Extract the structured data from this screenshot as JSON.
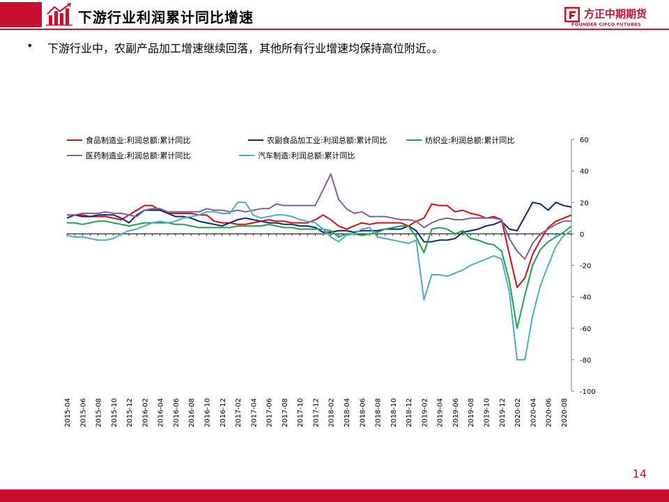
{
  "page": {
    "title": "下游行业利润累计同比增速",
    "bullet_text": "下游行业中，农副产品加工增速继续回落，其他所有行业增速均保持高位附近。。",
    "page_number": "14",
    "brand_name": "方正中期期货",
    "brand_sub": "FOUNDER CIFCO FUTURES",
    "accent_color": "#c8102e",
    "icons": [
      "bar-chart-growth-icon",
      "founder-logo-icon"
    ]
  },
  "chart_data": {
    "type": "line",
    "title": "",
    "xlabel": "",
    "ylabel": "",
    "ylim": [
      -100,
      60
    ],
    "yticks": [
      60,
      40,
      20,
      0,
      -20,
      -40,
      -60,
      -80,
      -100
    ],
    "y_axis_position": "right",
    "grid": false,
    "legend_position": "top-left",
    "x": [
      "2015-04",
      "2015-05",
      "2015-06",
      "2015-07",
      "2015-08",
      "2015-09",
      "2015-10",
      "2015-11",
      "2015-12",
      "2016-01",
      "2016-02",
      "2016-03",
      "2016-04",
      "2016-05",
      "2016-06",
      "2016-07",
      "2016-08",
      "2016-09",
      "2016-10",
      "2016-11",
      "2016-12",
      "2017-01",
      "2017-02",
      "2017-03",
      "2017-04",
      "2017-05",
      "2017-06",
      "2017-07",
      "2017-08",
      "2017-09",
      "2017-10",
      "2017-11",
      "2017-12",
      "2018-01",
      "2018-02",
      "2018-03",
      "2018-04",
      "2018-05",
      "2018-06",
      "2018-07",
      "2018-08",
      "2018-09",
      "2018-10",
      "2018-11",
      "2018-12",
      "2019-01",
      "2019-02",
      "2019-03",
      "2019-04",
      "2019-05",
      "2019-06",
      "2019-07",
      "2019-08",
      "2019-09",
      "2019-10",
      "2019-11",
      "2019-12",
      "2020-01",
      "2020-02",
      "2020-03",
      "2020-04",
      "2020-05",
      "2020-06",
      "2020-07",
      "2020-08",
      "2020-09"
    ],
    "xtick_labels": [
      "2015-04",
      "2015-06",
      "2015-08",
      "2015-10",
      "2015-12",
      "2016-02",
      "2016-04",
      "2016-06",
      "2016-08",
      "2016-10",
      "2016-12",
      "2017-02",
      "2017-04",
      "2017-06",
      "2017-08",
      "2017-10",
      "2017-12",
      "2018-02",
      "2018-04",
      "2018-06",
      "2018-08",
      "2018-10",
      "2018-12",
      "2019-02",
      "2019-04",
      "2019-06",
      "2019-08",
      "2019-10",
      "2019-12",
      "2020-02",
      "2020-04",
      "2020-06",
      "2020-08"
    ],
    "series": [
      {
        "name": "食品制造业:利润总额:累计同比",
        "color": "#e30613",
        "values": [
          12,
          12,
          12,
          11,
          11,
          11,
          10,
          9,
          12,
          15,
          18,
          18,
          15,
          13,
          13,
          13,
          13,
          12,
          12,
          8,
          7,
          7,
          6,
          6,
          7,
          8,
          9,
          8,
          8,
          7,
          7,
          7,
          9,
          12,
          9,
          5,
          3,
          5,
          7,
          6,
          7,
          7,
          7,
          7,
          5,
          8,
          10,
          19,
          18,
          18,
          14,
          15,
          13,
          12,
          10,
          11,
          9,
          -13,
          -34,
          -28,
          -13,
          -4,
          4,
          8,
          10,
          12
        ]
      },
      {
        "name": "农副食品加工业:利润总额:累计同比",
        "color": "#0a2a6e",
        "values": [
          10,
          12,
          11,
          11,
          12,
          12,
          12,
          10,
          7,
          12,
          15,
          15,
          15,
          13,
          11,
          11,
          10,
          8,
          7,
          6,
          5,
          7,
          9,
          10,
          9,
          8,
          7,
          7,
          6,
          6,
          5,
          5,
          4,
          1,
          1,
          2,
          2,
          1,
          2,
          2,
          2,
          3,
          3,
          3,
          5,
          2,
          -5,
          -5,
          -4,
          -4,
          -3,
          1,
          2,
          3,
          5,
          6,
          8,
          3,
          2,
          11,
          20,
          19,
          15,
          20,
          18,
          17
        ]
      },
      {
        "name": "纺织业:利润总额:累计同比",
        "color": "#1aa34a",
        "values": [
          7,
          7,
          6,
          7,
          8,
          8,
          7,
          6,
          5,
          6,
          7,
          7,
          7,
          7,
          6,
          6,
          5,
          4,
          4,
          4,
          4,
          4,
          5,
          5,
          5,
          5,
          6,
          5,
          4,
          4,
          3,
          3,
          3,
          3,
          2,
          -2,
          0,
          0,
          -1,
          0,
          1,
          3,
          4,
          5,
          5,
          -2,
          -12,
          3,
          4,
          3,
          0,
          2,
          -3,
          -4,
          -6,
          -7,
          -11,
          -30,
          -60,
          -39,
          -20,
          -10,
          -5,
          -2,
          1,
          5
        ]
      },
      {
        "name": "医药制造业:利润总额:累计同比",
        "color": "#7f5fa0",
        "values": [
          12,
          12,
          13,
          13,
          13,
          14,
          13,
          13,
          12,
          11,
          15,
          16,
          16,
          14,
          14,
          14,
          14,
          14,
          16,
          15,
          15,
          14,
          15,
          14,
          15,
          16,
          16,
          19,
          18,
          18,
          18,
          18,
          18,
          28,
          38,
          22,
          16,
          13,
          14,
          11,
          11,
          11,
          10,
          9,
          9,
          8,
          4,
          7,
          9,
          10,
          9,
          9,
          10,
          10,
          10,
          10,
          9,
          -3,
          -11,
          -16,
          -6,
          0,
          3,
          6,
          8,
          8
        ]
      },
      {
        "name": "汽车制造:利润总额:累计同比",
        "color": "#4bacc6",
        "values": [
          -1,
          -2,
          -2,
          -3,
          -4,
          -4,
          -3,
          0,
          2,
          3,
          5,
          7,
          8,
          7,
          8,
          10,
          11,
          12,
          14,
          14,
          13,
          13,
          20,
          20,
          12,
          10,
          11,
          12,
          12,
          11,
          9,
          8,
          7,
          3,
          -2,
          -5,
          -1,
          0,
          3,
          4,
          -2,
          -3,
          -4,
          -5,
          -6,
          -4,
          -42,
          -26,
          -26,
          -27,
          -25,
          -23,
          -20,
          -18,
          -16,
          -14,
          -16,
          -37,
          -80,
          -80,
          -52,
          -33,
          -20,
          -8,
          -1,
          2
        ]
      }
    ]
  }
}
